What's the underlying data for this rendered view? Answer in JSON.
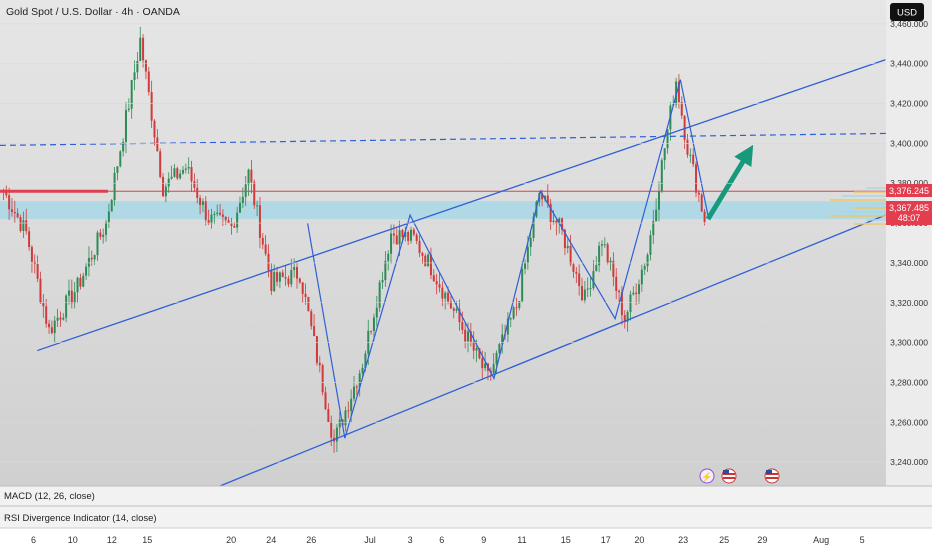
{
  "header": {
    "symbol_title": "Gold Spot / U.S. Dollar · 4h · OANDA",
    "currency_button": "USD"
  },
  "colors": {
    "background_top": "#e4e4e4",
    "background_bottom": "#d2d2d2",
    "candle_up": "#2e8b57",
    "candle_down": "#d03a3a",
    "trendline": "#2f5fd6",
    "resistance_line": "#e23e4f",
    "support_zone": "#a9d7e6",
    "arrow": "#179a7b",
    "price_badge_red": "#e23e4f"
  },
  "chart_data": {
    "type": "candlestick",
    "title": "Gold Spot / U.S. Dollar · 4h · OANDA",
    "ylim": [
      3228,
      3472
    ],
    "y_ticks": [
      3240,
      3260,
      3280,
      3300,
      3320,
      3340,
      3360,
      3380,
      3400,
      3420,
      3440,
      3460
    ],
    "y_tick_labels": [
      "3,240.000",
      "3,260.000",
      "3,280.000",
      "3,300.000",
      "3,320.000",
      "3,340.000",
      "3,360.000",
      "3,380.000",
      "3,400.000",
      "3,420.000",
      "3,440.000",
      "3,460.000"
    ],
    "x_tick_labels": [
      "6",
      "10",
      "12",
      "15",
      "20",
      "24",
      "26",
      "Jul",
      "3",
      "6",
      "9",
      "11",
      "15",
      "17",
      "20",
      "23",
      "25",
      "29",
      "Aug",
      "5"
    ],
    "price_path": [
      {
        "bar": 0,
        "price": 3376
      },
      {
        "bar": 8,
        "price": 3355
      },
      {
        "bar": 16,
        "price": 3306
      },
      {
        "bar": 26,
        "price": 3328
      },
      {
        "bar": 36,
        "price": 3360
      },
      {
        "bar": 44,
        "price": 3420
      },
      {
        "bar": 48,
        "price": 3452
      },
      {
        "bar": 56,
        "price": 3378
      },
      {
        "bar": 64,
        "price": 3388
      },
      {
        "bar": 72,
        "price": 3362
      },
      {
        "bar": 80,
        "price": 3358
      },
      {
        "bar": 86,
        "price": 3385
      },
      {
        "bar": 94,
        "price": 3330
      },
      {
        "bar": 104,
        "price": 3335
      },
      {
        "bar": 116,
        "price": 3250
      },
      {
        "bar": 126,
        "price": 3290
      },
      {
        "bar": 136,
        "price": 3355
      },
      {
        "bar": 144,
        "price": 3352
      },
      {
        "bar": 150,
        "price": 3338
      },
      {
        "bar": 160,
        "price": 3310
      },
      {
        "bar": 170,
        "price": 3282
      },
      {
        "bar": 180,
        "price": 3318
      },
      {
        "bar": 188,
        "price": 3375
      },
      {
        "bar": 196,
        "price": 3355
      },
      {
        "bar": 204,
        "price": 3322
      },
      {
        "bar": 210,
        "price": 3352
      },
      {
        "bar": 218,
        "price": 3312
      },
      {
        "bar": 226,
        "price": 3345
      },
      {
        "bar": 232,
        "price": 3398
      },
      {
        "bar": 236,
        "price": 3432
      },
      {
        "bar": 240,
        "price": 3398
      },
      {
        "bar": 246,
        "price": 3362
      }
    ],
    "last_price": "3,376.245",
    "current_price": "3,367.485",
    "countdown": "48:07",
    "annotations": {
      "resistance_level": 3376,
      "support_zone": [
        3362,
        3371
      ],
      "dashed_level": [
        3399,
        3405
      ],
      "channel_upper": [
        [
          3336,
          0.33
        ],
        [
          3442,
          0.95
        ]
      ],
      "channel_lower": [
        [
          3296,
          0.04
        ],
        [
          3228,
          0.24
        ],
        [
          3364,
          0.95
        ]
      ],
      "zigzag": [
        [
          3360,
          0.33
        ],
        [
          3252,
          0.37
        ],
        [
          3364,
          0.44
        ],
        [
          3282,
          0.53
        ],
        [
          3376,
          0.58
        ],
        [
          3312,
          0.66
        ],
        [
          3432,
          0.73
        ],
        [
          3363,
          0.76
        ]
      ],
      "arrow_from": 3362,
      "arrow_to": 3395
    }
  },
  "indicators": [
    {
      "label": "MACD (12, 26, close)"
    },
    {
      "label": "RSI Divergence Indicator (14, close)"
    }
  ]
}
